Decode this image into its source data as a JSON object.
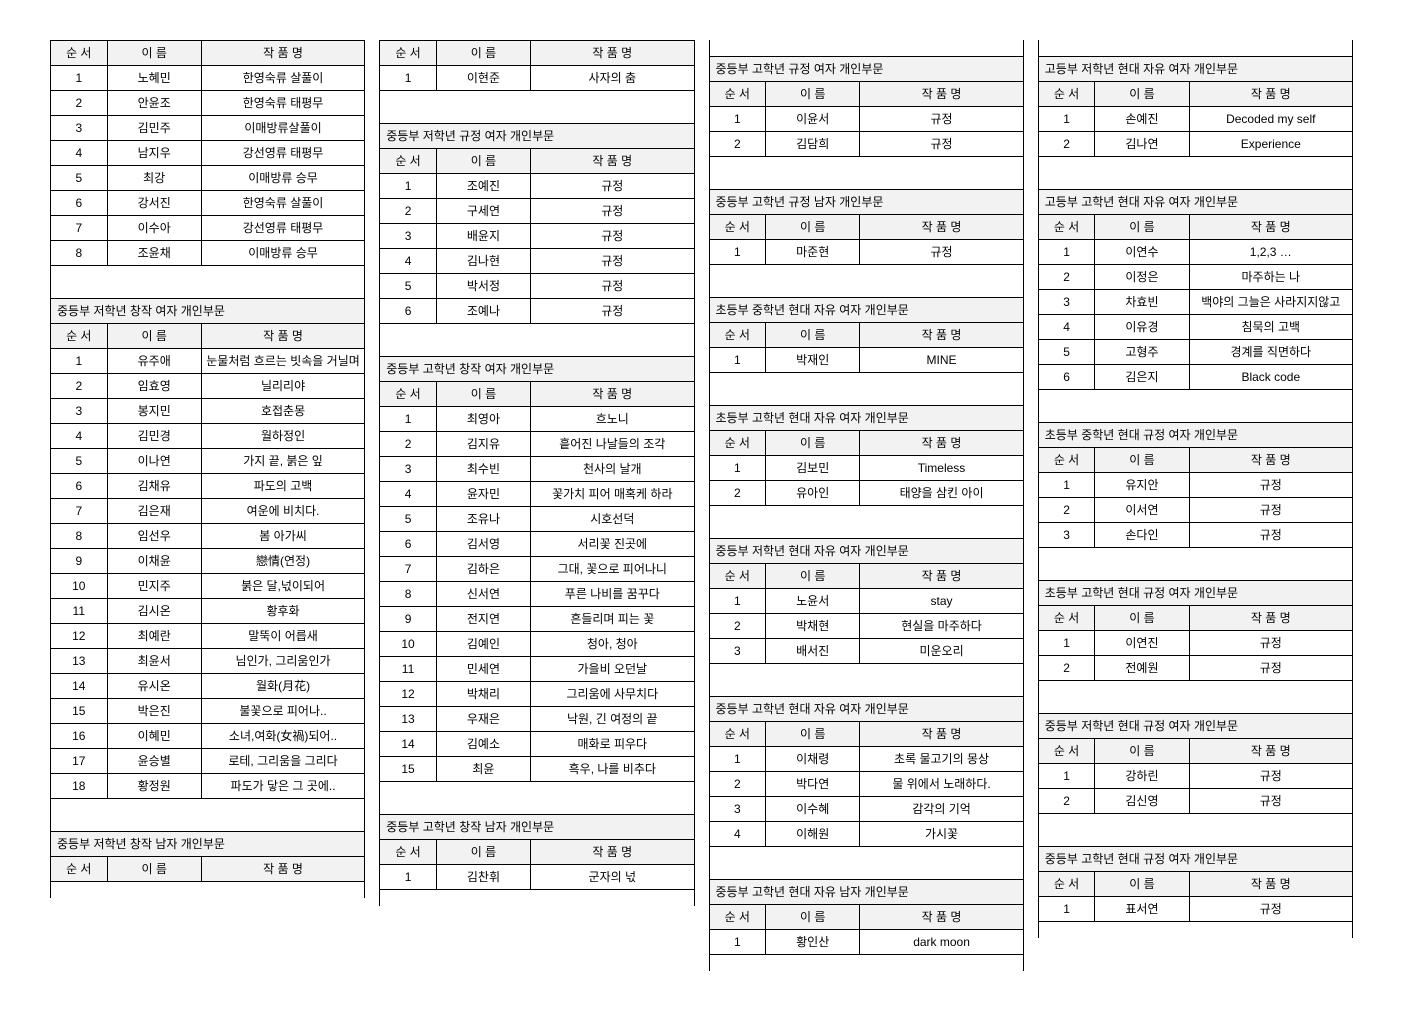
{
  "headers": {
    "seq": "순 서",
    "name": "이 름",
    "work": "작 품 명"
  },
  "columns": [
    {
      "blocks": [
        {
          "title": null,
          "rows": [
            [
              "1",
              "노혜민",
              "한영숙류 살풀이"
            ],
            [
              "2",
              "안윤조",
              "한영숙류 태평무"
            ],
            [
              "3",
              "김민주",
              "이매방류살풀이"
            ],
            [
              "4",
              "남지우",
              "강선영류 태평무"
            ],
            [
              "5",
              "최강",
              "이매방류 승무"
            ],
            [
              "6",
              "강서진",
              "한영숙류 살풀이"
            ],
            [
              "7",
              "이수아",
              "강선영류 태평무"
            ],
            [
              "8",
              "조윤채",
              "이매방류 승무"
            ]
          ]
        },
        {
          "title": "중등부 저학년 창작 여자 개인부문",
          "rows": [
            [
              "1",
              "유주애",
              "눈물처럼 흐르는 빗속을 거닐며"
            ],
            [
              "2",
              "임효영",
              "닐리리야"
            ],
            [
              "3",
              "봉지민",
              "호접춘몽"
            ],
            [
              "4",
              "김민경",
              "월하정인"
            ],
            [
              "5",
              "이나연",
              "가지 끝, 붉은 잎"
            ],
            [
              "6",
              "김채유",
              "파도의 고백"
            ],
            [
              "7",
              "김은재",
              "여운에 비치다."
            ],
            [
              "8",
              "임선우",
              "봄 아가씨"
            ],
            [
              "9",
              "이채윤",
              "戀情(연정)"
            ],
            [
              "10",
              "민지주",
              "붉은 달,넋이되어"
            ],
            [
              "11",
              "김시온",
              "황후화"
            ],
            [
              "12",
              "최예란",
              "말뚝이 어릅새"
            ],
            [
              "13",
              "최윤서",
              "님인가, 그리움인가"
            ],
            [
              "14",
              "유시온",
              "월화(月花)"
            ],
            [
              "15",
              "박은진",
              "불꽃으로 피어나.."
            ],
            [
              "16",
              "이혜민",
              "소녀,여화(女禍)되어.."
            ],
            [
              "17",
              "윤승별",
              "로테, 그리움을 그리다"
            ],
            [
              "18",
              "황정원",
              "파도가 닿은 그 곳에.."
            ]
          ]
        },
        {
          "title": "중등부 저학년 창작 남자 개인부문",
          "rows": []
        }
      ]
    },
    {
      "blocks": [
        {
          "title": null,
          "rows": [
            [
              "1",
              "이현준",
              "사자의 춤"
            ]
          ]
        },
        {
          "title": "중등부 저학년 규정 여자 개인부문",
          "rows": [
            [
              "1",
              "조예진",
              "규정"
            ],
            [
              "2",
              "구세연",
              "규정"
            ],
            [
              "3",
              "배윤지",
              "규정"
            ],
            [
              "4",
              "김나현",
              "규정"
            ],
            [
              "5",
              "박서정",
              "규정"
            ],
            [
              "6",
              "조예나",
              "규정"
            ]
          ]
        },
        {
          "title": "중등부 고학년 창작 여자 개인부문",
          "rows": [
            [
              "1",
              "최영아",
              "흐노니"
            ],
            [
              "2",
              "김지유",
              "흩어진 나날들의 조각"
            ],
            [
              "3",
              "최수빈",
              "천사의 날개"
            ],
            [
              "4",
              "윤자민",
              "꽃가치 피어 매혹케 하라"
            ],
            [
              "5",
              "조유나",
              "시호선덕"
            ],
            [
              "6",
              "김서영",
              "서리꽃 진곳에"
            ],
            [
              "7",
              "김하은",
              "그대, 꽃으로 피어나니"
            ],
            [
              "8",
              "신서연",
              "푸른 나비를 꿈꾸다"
            ],
            [
              "9",
              "전지연",
              "흔들리며 피는 꽃"
            ],
            [
              "10",
              "김예인",
              "청아, 청아"
            ],
            [
              "11",
              "민세연",
              "가을비 오던날"
            ],
            [
              "12",
              "박채리",
              "그리움에 사무치다"
            ],
            [
              "13",
              "우재은",
              "낙원, 긴 여정의 끝"
            ],
            [
              "14",
              "김예소",
              "매화로 피우다"
            ],
            [
              "15",
              "최윤",
              "흑우, 나를 비추다"
            ]
          ]
        },
        {
          "title": "중등부 고학년 창작 남자 개인부문",
          "rows": [
            [
              "1",
              "김찬휘",
              "군자의 넋"
            ]
          ]
        }
      ]
    },
    {
      "blocks": [
        {
          "title": "중등부 고학년 규정 여자 개인부문",
          "rows": [
            [
              "1",
              "이윤서",
              "규정"
            ],
            [
              "2",
              "김담희",
              "규정"
            ]
          ]
        },
        {
          "title": "중등부 고학년 규정 남자 개인부문",
          "rows": [
            [
              "1",
              "마준현",
              "규정"
            ]
          ]
        },
        {
          "title": "초등부 중학년 현대 자유 여자 개인부문",
          "rows": [
            [
              "1",
              "박재인",
              "MINE"
            ]
          ]
        },
        {
          "title": "초등부 고학년 현대 자유 여자 개인부문",
          "rows": [
            [
              "1",
              "김보민",
              "Timeless"
            ],
            [
              "2",
              "유아인",
              "태양을 삼킨 아이"
            ]
          ]
        },
        {
          "title": "중등부 저학년 현대 자유 여자 개인부문",
          "rows": [
            [
              "1",
              "노윤서",
              "stay"
            ],
            [
              "2",
              "박채현",
              "현실을 마주하다"
            ],
            [
              "3",
              "배서진",
              "미운오리"
            ]
          ]
        },
        {
          "title": "중등부 고학년 현대 자유 여자 개인부문",
          "rows": [
            [
              "1",
              "이채령",
              "초록 물고기의 몽상"
            ],
            [
              "2",
              "박다연",
              "물 위에서 노래하다."
            ],
            [
              "3",
              "이수혜",
              "감각의 기억"
            ],
            [
              "4",
              "이해원",
              "가시꽃"
            ]
          ]
        },
        {
          "title": "중등부 고학년 현대 자유 남자 개인부문",
          "rows": [
            [
              "1",
              "황인산",
              "dark moon"
            ]
          ]
        }
      ]
    },
    {
      "blocks": [
        {
          "title": "고등부 저학년 현대 자유 여자 개인부문",
          "rows": [
            [
              "1",
              "손예진",
              "Decoded my self"
            ],
            [
              "2",
              "김나연",
              "Experience"
            ]
          ]
        },
        {
          "title": "고등부 고학년 현대 자유 여자 개인부문",
          "rows": [
            [
              "1",
              "이연수",
              "1,2,3 …"
            ],
            [
              "2",
              "이정은",
              "마주하는 나"
            ],
            [
              "3",
              "차효빈",
              "백야의 그늘은 사라지지않고"
            ],
            [
              "4",
              "이유경",
              "침묵의 고백"
            ],
            [
              "5",
              "고형주",
              "경계를 직면하다"
            ],
            [
              "6",
              "김은지",
              "Black code"
            ]
          ]
        },
        {
          "title": "초등부 중학년 현대 규정 여자 개인부문",
          "rows": [
            [
              "1",
              "유지안",
              "규정"
            ],
            [
              "2",
              "이서연",
              "규정"
            ],
            [
              "3",
              "손다인",
              "규정"
            ]
          ]
        },
        {
          "title": "초등부 고학년 현대 규정 여자 개인부문",
          "rows": [
            [
              "1",
              "이연진",
              "규정"
            ],
            [
              "2",
              "전예원",
              "규정"
            ]
          ]
        },
        {
          "title": "중등부 저학년 현대 규정 여자 개인부문",
          "rows": [
            [
              "1",
              "강하린",
              "규정"
            ],
            [
              "2",
              "김신영",
              "규정"
            ]
          ]
        },
        {
          "title": "중등부 고학년 현대 규정 여자 개인부문",
          "rows": [
            [
              "1",
              "표서연",
              "규정"
            ]
          ]
        }
      ]
    }
  ]
}
